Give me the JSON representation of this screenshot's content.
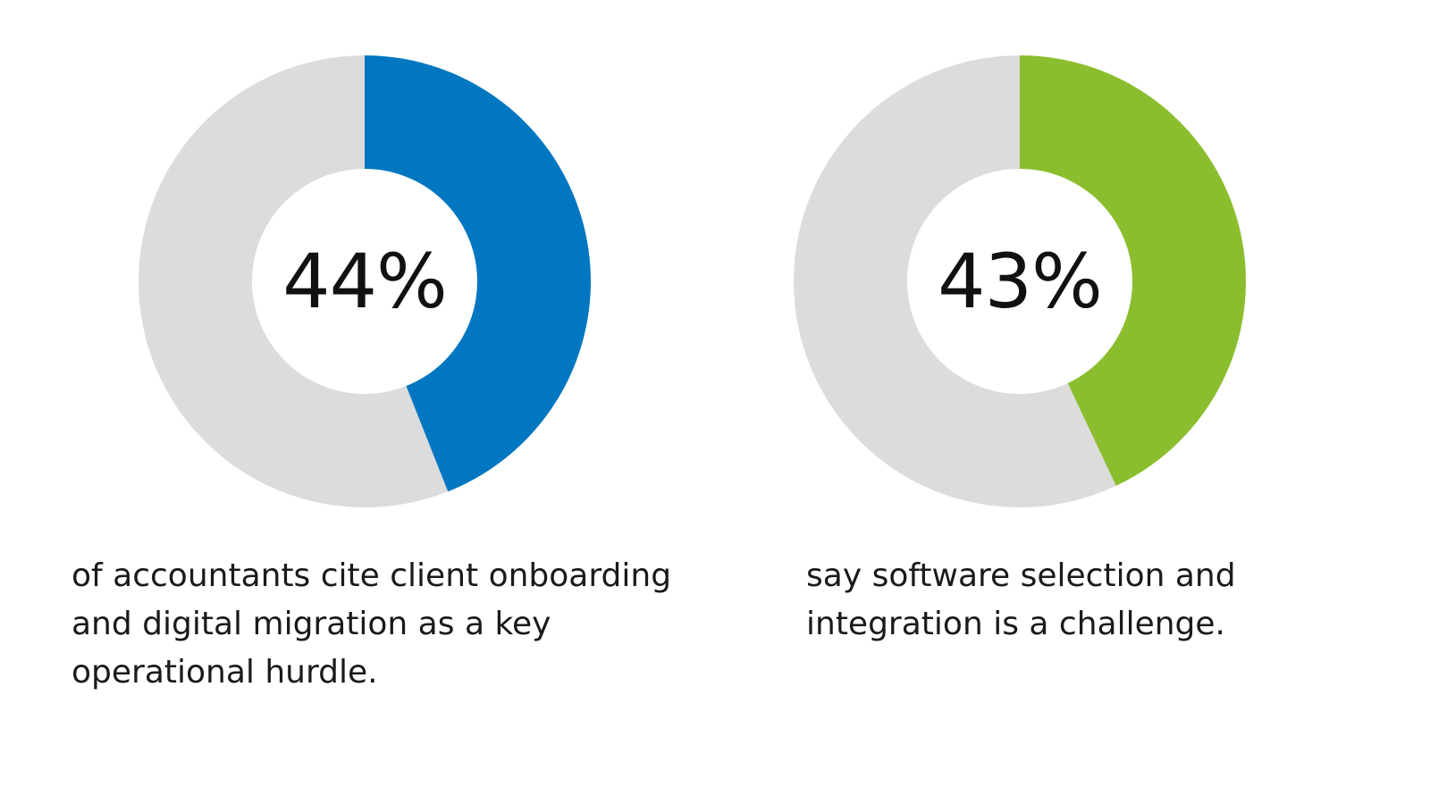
{
  "chart_data": [
    {
      "type": "pie",
      "variant": "donut",
      "value_label": "44%",
      "slices": [
        {
          "value": 44,
          "color": "#0077c0"
        },
        {
          "value": 56,
          "color": "#dcdcdc"
        }
      ],
      "caption": "of accountants cite client onboarding and digital migration as a key operational hurdle."
    },
    {
      "type": "pie",
      "variant": "donut",
      "value_label": "43%",
      "slices": [
        {
          "value": 43,
          "color": "#8bbe2e"
        },
        {
          "value": 57,
          "color": "#dcdcdc"
        }
      ],
      "caption": "say software selection and integration is a challenge."
    }
  ]
}
